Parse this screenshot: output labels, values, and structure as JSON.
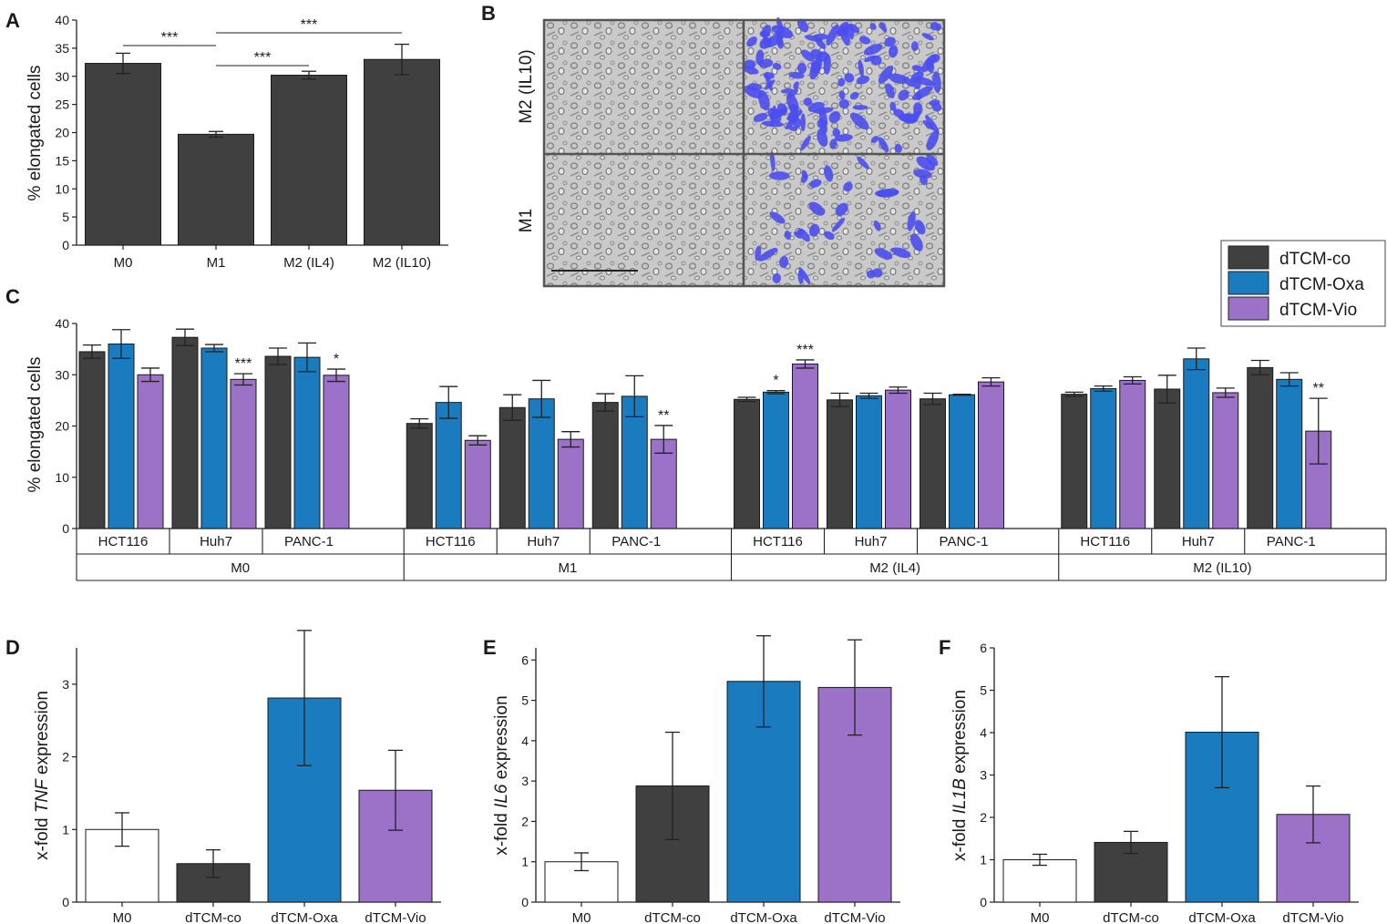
{
  "colors": {
    "co": "#404040",
    "oxa": "#1a7bbf",
    "vio": "#9b72c8",
    "m0": "#ffffff",
    "overlay": "#4b4ef0"
  },
  "panel_labels": {
    "a": "A",
    "b": "B",
    "c": "C",
    "d": "D",
    "e": "E",
    "f": "F"
  },
  "micrograph": {
    "row_top": "M2 (IL10)",
    "row_bottom": "M1"
  },
  "legend": {
    "items": [
      {
        "key": "co",
        "label": "dTCM-co"
      },
      {
        "key": "oxa",
        "label": "dTCM-Oxa"
      },
      {
        "key": "vio",
        "label": "dTCM-Vio"
      }
    ]
  },
  "chart_data": [
    {
      "id": "A",
      "type": "bar",
      "title": "",
      "xlabel": "",
      "ylabel": "% elongated cells",
      "categories": [
        "M0",
        "M1",
        "M2 (IL4)",
        "M2 (IL10)"
      ],
      "values": [
        32.3,
        19.7,
        30.2,
        33.0
      ],
      "errors": [
        1.8,
        0.5,
        0.7,
        2.7
      ],
      "ylim": [
        0,
        40
      ],
      "yticks": [
        0,
        5,
        10,
        15,
        20,
        25,
        30,
        35,
        40
      ],
      "significance": [
        {
          "from": 0,
          "to": 1,
          "label": "***"
        },
        {
          "from": 1,
          "to": 2,
          "label": "***"
        },
        {
          "from": 1,
          "to": 3,
          "label": "***"
        }
      ]
    },
    {
      "id": "C",
      "type": "bar",
      "ylabel": "% elongated cells",
      "ylim": [
        0,
        40
      ],
      "yticks": [
        0,
        10,
        20,
        30,
        40
      ],
      "series_names": [
        "dTCM-co",
        "dTCM-Oxa",
        "dTCM-Vio"
      ],
      "groups": [
        {
          "label": "M0",
          "cells": [
            {
              "label": "HCT116",
              "values": [
                34.5,
                36.0,
                30.0
              ],
              "errors": [
                1.3,
                2.8,
                1.3
              ],
              "sig": [
                "",
                "",
                ""
              ]
            },
            {
              "label": "Huh7",
              "values": [
                37.3,
                35.2,
                29.1
              ],
              "errors": [
                1.6,
                0.7,
                1.1
              ],
              "sig": [
                "",
                "",
                "***"
              ]
            },
            {
              "label": "PANC-1",
              "values": [
                33.6,
                33.4,
                29.9
              ],
              "errors": [
                1.6,
                2.8,
                1.2
              ],
              "sig": [
                "",
                "",
                "*"
              ]
            }
          ]
        },
        {
          "label": "M1",
          "cells": [
            {
              "label": "HCT116",
              "values": [
                20.5,
                24.6,
                17.2
              ],
              "errors": [
                0.9,
                3.1,
                0.9
              ],
              "sig": [
                "",
                "",
                ""
              ]
            },
            {
              "label": "Huh7",
              "values": [
                23.6,
                25.3,
                17.4
              ],
              "errors": [
                2.5,
                3.6,
                1.5
              ],
              "sig": [
                "",
                "",
                ""
              ]
            },
            {
              "label": "PANC-1",
              "values": [
                24.6,
                25.8,
                17.4
              ],
              "errors": [
                1.7,
                4.0,
                2.7
              ],
              "sig": [
                "",
                "",
                "**"
              ]
            }
          ]
        },
        {
          "label": "M2 (IL4)",
          "cells": [
            {
              "label": "HCT116",
              "values": [
                25.2,
                26.6,
                32.1
              ],
              "errors": [
                0.4,
                0.3,
                0.8
              ],
              "sig": [
                "",
                "*",
                "***"
              ]
            },
            {
              "label": "Huh7",
              "values": [
                25.1,
                25.9,
                27.0
              ],
              "errors": [
                1.3,
                0.5,
                0.6
              ],
              "sig": [
                "",
                "",
                ""
              ]
            },
            {
              "label": "PANC-1",
              "values": [
                25.3,
                26.1,
                28.6
              ],
              "errors": [
                1.1,
                0.1,
                0.8
              ],
              "sig": [
                "",
                "",
                ""
              ]
            }
          ]
        },
        {
          "label": "M2 (IL10)",
          "cells": [
            {
              "label": "HCT116",
              "values": [
                26.2,
                27.3,
                28.9
              ],
              "errors": [
                0.4,
                0.5,
                0.7
              ],
              "sig": [
                "",
                "",
                ""
              ]
            },
            {
              "label": "Huh7",
              "values": [
                27.2,
                33.1,
                26.5
              ],
              "errors": [
                2.7,
                2.1,
                0.9
              ],
              "sig": [
                "",
                "",
                ""
              ]
            },
            {
              "label": "PANC-1",
              "values": [
                31.4,
                29.1,
                19.0
              ],
              "errors": [
                1.4,
                1.3,
                6.4
              ],
              "sig": [
                "",
                "",
                "**"
              ]
            }
          ]
        }
      ]
    },
    {
      "id": "D",
      "type": "bar",
      "ylabel_prefix": "x-fold ",
      "ylabel_gene": "TNF",
      "ylabel_suffix": " expression",
      "categories": [
        "M0",
        "dTCM-co",
        "dTCM-Oxa",
        "dTCM-Vio"
      ],
      "values": [
        1.0,
        0.53,
        2.81,
        1.54
      ],
      "errors": [
        0.23,
        0.19,
        0.93,
        0.55
      ],
      "bar_colors": [
        "m0",
        "co",
        "oxa",
        "vio"
      ],
      "ylim": [
        0,
        3.5
      ],
      "yticks": [
        0,
        1,
        2,
        3
      ]
    },
    {
      "id": "E",
      "type": "bar",
      "ylabel_prefix": "x-fold ",
      "ylabel_gene": "IL6",
      "ylabel_suffix": " expression",
      "categories": [
        "M0",
        "dTCM-co",
        "dTCM-Oxa",
        "dTCM-Vio"
      ],
      "values": [
        1.0,
        2.88,
        5.47,
        5.32
      ],
      "errors": [
        0.22,
        1.33,
        1.13,
        1.18
      ],
      "bar_colors": [
        "m0",
        "co",
        "oxa",
        "vio"
      ],
      "ylim": [
        0,
        6.3
      ],
      "yticks": [
        0,
        1,
        2,
        3,
        4,
        5,
        6
      ]
    },
    {
      "id": "F",
      "type": "bar",
      "ylabel_prefix": "x-fold ",
      "ylabel_gene": "IL1B",
      "ylabel_suffix": " expression",
      "categories": [
        "M0",
        "dTCM-co",
        "dTCM-Oxa",
        "dTCM-Vio"
      ],
      "values": [
        1.0,
        1.41,
        4.01,
        2.07
      ],
      "errors": [
        0.13,
        0.26,
        1.31,
        0.67
      ],
      "bar_colors": [
        "m0",
        "co",
        "oxa",
        "vio"
      ],
      "ylim": [
        0,
        6.0
      ],
      "yticks": [
        0,
        1,
        2,
        3,
        4,
        5,
        6
      ]
    }
  ]
}
